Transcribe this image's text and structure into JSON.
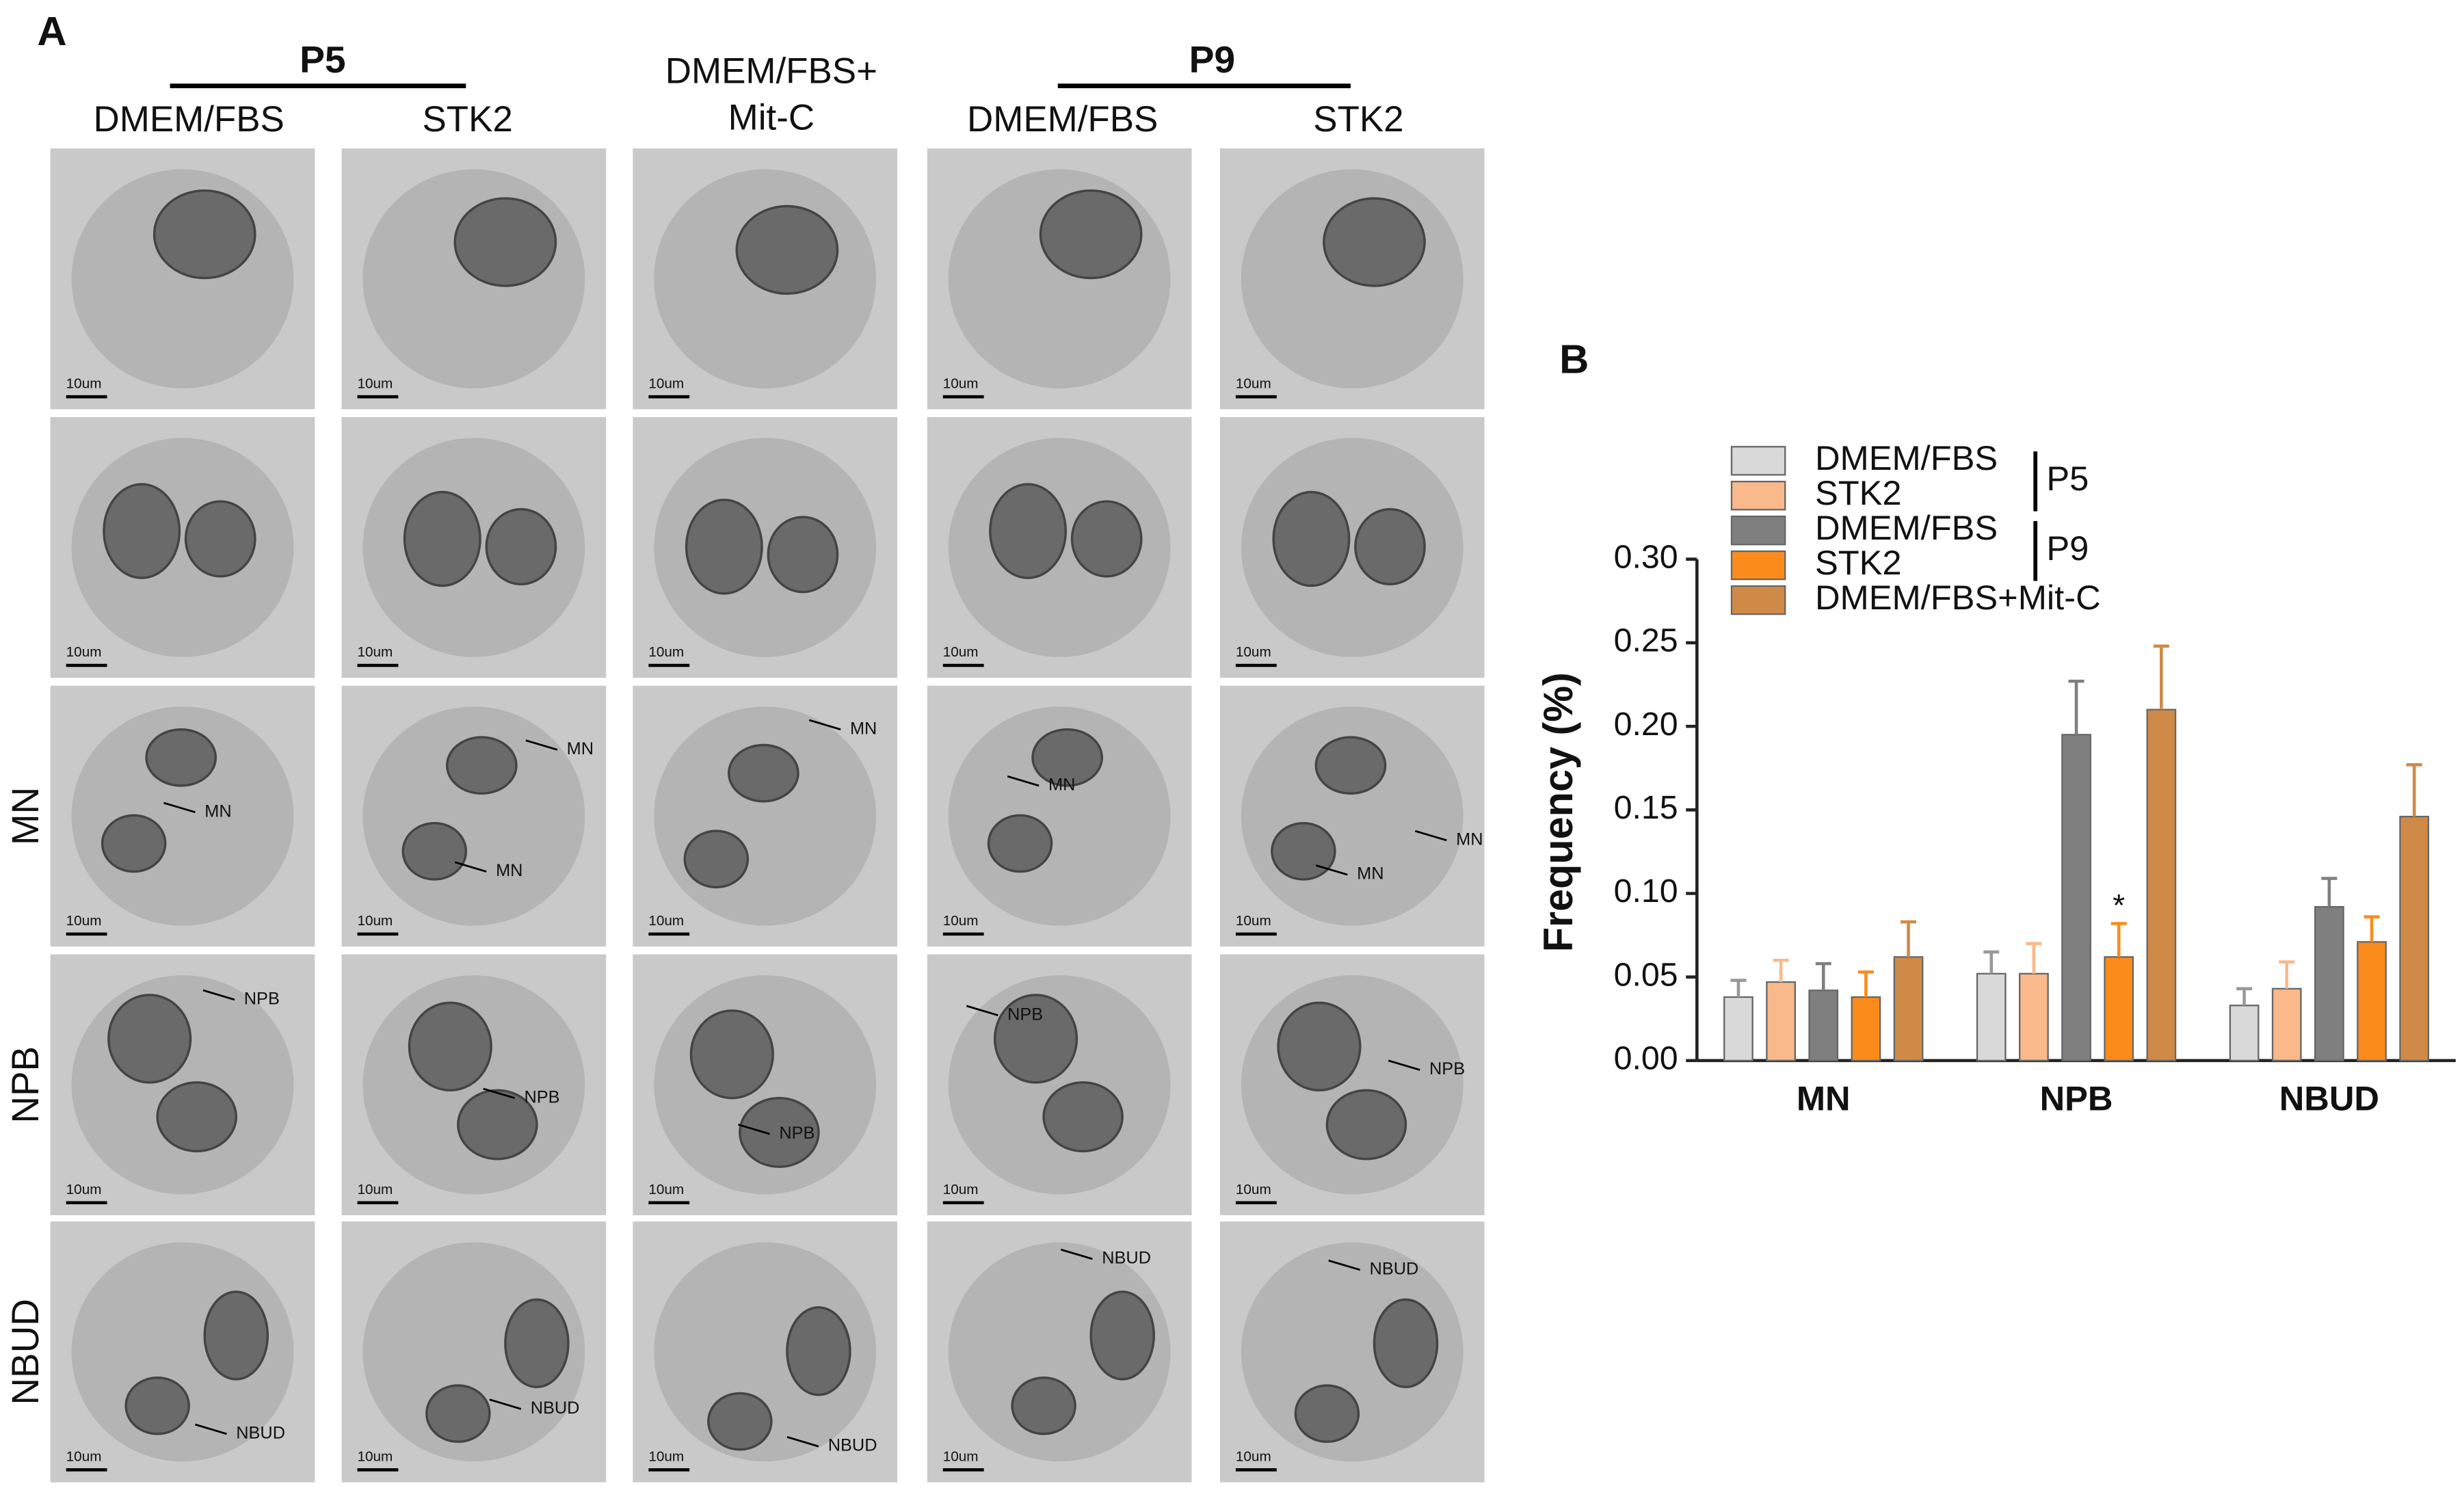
{
  "panel_a": {
    "label": "A",
    "groups": [
      "P5",
      "P9"
    ],
    "columns": [
      "DMEM/FBS",
      "STK2",
      "DMEM/FBS+\nMit-C",
      "DMEM/FBS",
      "STK2"
    ],
    "row_labels": [
      "MN",
      "NPB",
      "NBUD"
    ],
    "scale_bar_label": "10um",
    "annotations": [
      [
        [
          "MN"
        ],
        [
          "MN",
          "MN"
        ],
        [
          "MN"
        ],
        [
          "MN"
        ],
        [
          "MN",
          "MN"
        ]
      ],
      [
        [
          "NPB"
        ],
        [
          "NPB"
        ],
        [
          "NPB"
        ],
        [
          "NPB"
        ],
        [
          "NPB"
        ]
      ],
      [
        [
          "NBUD"
        ],
        [
          "NBUD"
        ],
        [
          "NBUD"
        ],
        [
          "NBUD"
        ],
        [
          "NBUD"
        ]
      ]
    ]
  },
  "chart_data": {
    "type": "bar",
    "label": "B",
    "y_label": "Frequency (%)",
    "categories": [
      "MN",
      "NPB",
      "NBUD"
    ],
    "series": [
      {
        "name": "DMEM/FBS",
        "group": "P5",
        "color": "#d9d9d9",
        "values": [
          0.038,
          0.052,
          0.033
        ],
        "errors": [
          0.01,
          0.013,
          0.01
        ]
      },
      {
        "name": "STK2",
        "group": "P5",
        "color": "#f9b98a",
        "values": [
          0.047,
          0.052,
          0.043
        ],
        "errors": [
          0.013,
          0.018,
          0.016
        ]
      },
      {
        "name": "DMEM/FBS",
        "group": "P9",
        "color": "#7f7f7f",
        "values": [
          0.042,
          0.195,
          0.092
        ],
        "errors": [
          0.016,
          0.032,
          0.017
        ]
      },
      {
        "name": "STK2",
        "group": "P9",
        "color": "#fb8c1c",
        "values": [
          0.038,
          0.062,
          0.071
        ],
        "errors": [
          0.015,
          0.02,
          0.015
        ],
        "value_labels": [
          null,
          "*",
          null
        ]
      },
      {
        "name": "DMEM/FBS+Mit-C",
        "color": "#d08a47",
        "values": [
          0.062,
          0.21,
          0.146
        ],
        "errors": [
          0.021,
          0.038,
          0.031
        ]
      }
    ],
    "ylim": [
      0,
      0.3
    ],
    "yticks": [
      {
        "value": 0,
        "label": "0.00"
      },
      {
        "value": 0.05,
        "label": "0.05"
      },
      {
        "value": 0.1,
        "label": "0.10"
      },
      {
        "value": 0.15,
        "label": "0.15"
      },
      {
        "value": 0.2,
        "label": "0.20"
      },
      {
        "value": 0.25,
        "label": "0.25"
      },
      {
        "value": 0.3,
        "label": "0.30"
      }
    ]
  }
}
